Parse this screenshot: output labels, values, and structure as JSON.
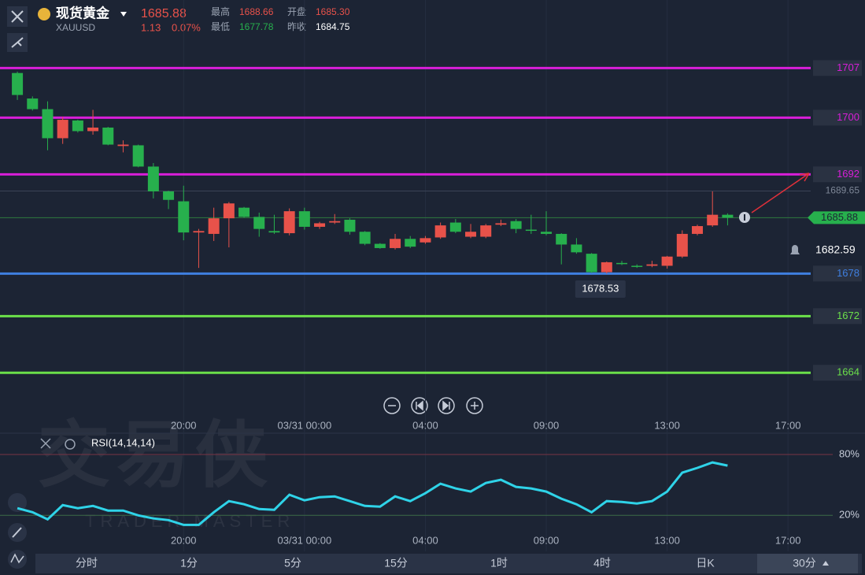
{
  "header": {
    "name": "现货黄金",
    "symbol": "XAUUSD",
    "price": "1685.88",
    "change": "1.13",
    "change_pct": "0.07%",
    "high_label": "最高",
    "high": "1688.66",
    "open_label": "开盘",
    "open": "1685.30",
    "low_label": "最低",
    "low": "1677.78",
    "prev_label": "昨收",
    "prev": "1684.75"
  },
  "watermark": {
    "title": "交易侠",
    "subtitle": "TRADER MASTER"
  },
  "tabs": [
    "分时",
    "1分",
    "5分",
    "15分",
    "1时",
    "4时",
    "日K",
    "30分"
  ],
  "chart_data": [
    {
      "type": "candlestick",
      "up_color": "#e8524a",
      "down_color": "#27b04d",
      "open": [
        1706.3,
        1702.7,
        1701.2,
        1697.1,
        1699.6,
        1698.1,
        1698.6,
        1696.0,
        1696.1,
        1693.1,
        1689.6,
        1688.2,
        1683.8,
        1683.6,
        1685.8,
        1687.3,
        1686.0,
        1684.0,
        1683.7,
        1686.8,
        1684.6,
        1685.2,
        1685.6,
        1683.9,
        1682.2,
        1681.6,
        1682.9,
        1682.4,
        1683.1,
        1685.2,
        1683.2,
        1683.2,
        1684.9,
        1685.4,
        1684.2,
        1683.9,
        1683.6,
        1682.1,
        1680.8,
        1678.2,
        1679.5,
        1679.1,
        1679.1,
        1679.1,
        1680.4,
        1683.6,
        1684.8,
        1686.3
      ],
      "high": [
        1706.5,
        1703.0,
        1702.3,
        1700.1,
        1699.7,
        1701.1,
        1698.7,
        1696.8,
        1696.2,
        1693.6,
        1689.7,
        1690.4,
        1684.3,
        1687.3,
        1688.1,
        1687.4,
        1686.6,
        1686.3,
        1687.2,
        1687.3,
        1685.3,
        1686.4,
        1685.8,
        1684.0,
        1682.3,
        1683.6,
        1683.3,
        1683.3,
        1685.2,
        1685.7,
        1685.0,
        1685.0,
        1685.6,
        1685.7,
        1686.3,
        1686.8,
        1683.7,
        1683.0,
        1680.9,
        1679.7,
        1679.8,
        1679.3,
        1679.8,
        1680.5,
        1684.1,
        1684.9,
        1689.6,
        1686.5
      ],
      "low": [
        1702.5,
        1701.0,
        1695.4,
        1696.3,
        1697.9,
        1697.6,
        1696.1,
        1695.1,
        1693.0,
        1688.6,
        1687.1,
        1682.7,
        1678.8,
        1682.6,
        1681.7,
        1685.9,
        1683.2,
        1683.6,
        1683.4,
        1684.2,
        1684.3,
        1685.0,
        1683.5,
        1682.0,
        1681.5,
        1681.4,
        1681.6,
        1682.2,
        1682.9,
        1683.7,
        1683.0,
        1683.0,
        1684.7,
        1683.7,
        1683.6,
        1683.4,
        1679.3,
        1680.8,
        1678.1,
        1678.0,
        1679.2,
        1678.8,
        1678.9,
        1678.7,
        1680.2,
        1683.4,
        1684.6,
        1684.8
      ],
      "close": [
        1703.2,
        1701.2,
        1697.1,
        1699.7,
        1698.1,
        1698.6,
        1696.2,
        1696.2,
        1693.1,
        1689.6,
        1688.4,
        1683.8,
        1684.0,
        1685.8,
        1687.9,
        1686.0,
        1684.3,
        1683.8,
        1686.8,
        1684.6,
        1685.1,
        1685.4,
        1683.9,
        1682.2,
        1681.6,
        1682.9,
        1681.8,
        1683.0,
        1684.8,
        1683.9,
        1683.9,
        1684.8,
        1685.1,
        1684.3,
        1684.1,
        1683.6,
        1682.1,
        1681.0,
        1678.2,
        1679.6,
        1679.4,
        1679.0,
        1679.3,
        1680.4,
        1683.6,
        1684.7,
        1686.3,
        1685.88
      ],
      "xlim": [
        -1.15,
        52.5
      ],
      "ylim": [
        1657.7,
        1716.6
      ],
      "xticks": [
        {
          "value": 11,
          "label": "20:00"
        },
        {
          "value": 19,
          "label": "03/31 00:00"
        },
        {
          "value": 27,
          "label": "04:00"
        },
        {
          "value": 35,
          "label": "09:00"
        },
        {
          "value": 43,
          "label": "13:00"
        },
        {
          "value": 51,
          "label": "17:00"
        }
      ],
      "levels": [
        {
          "value": 1707,
          "color": "#d81ed8"
        },
        {
          "value": 1700,
          "color": "#d81ed8"
        },
        {
          "value": 1692,
          "color": "#d81ed8"
        },
        {
          "value": 1678,
          "color": "#3f7fe0"
        },
        {
          "value": 1672,
          "color": "#6be04a"
        },
        {
          "value": 1664,
          "color": "#6be04a"
        }
      ],
      "max_line": 1689.65,
      "last_price": 1685.88,
      "alert": 1682.59,
      "low_marker": 1678.53
    },
    {
      "type": "line",
      "title": "RSI(14,14,14)",
      "color": "#2fd3e8",
      "ylim": [
        0,
        101
      ],
      "yticks": [
        {
          "value": 80,
          "label": "80%",
          "color": "#7a3444"
        },
        {
          "value": 20,
          "label": "20%",
          "color": "#3c6b46"
        }
      ],
      "values": [
        27.0,
        23.1,
        16.1,
        30.1,
        27.0,
        29.3,
        24.7,
        24.7,
        20.0,
        16.9,
        15.3,
        10.6,
        10.6,
        23.1,
        34.0,
        30.9,
        26.2,
        25.5,
        40.3,
        34.8,
        37.9,
        38.7,
        34.0,
        29.3,
        28.6,
        38.7,
        34.0,
        41.8,
        51.2,
        46.5,
        43.4,
        51.9,
        55.1,
        48.1,
        46.5,
        43.4,
        36.4,
        30.9,
        23.1,
        34.0,
        33.2,
        31.7,
        34.0,
        43.4,
        62.1,
        66.8,
        72.2,
        69.1
      ]
    }
  ]
}
